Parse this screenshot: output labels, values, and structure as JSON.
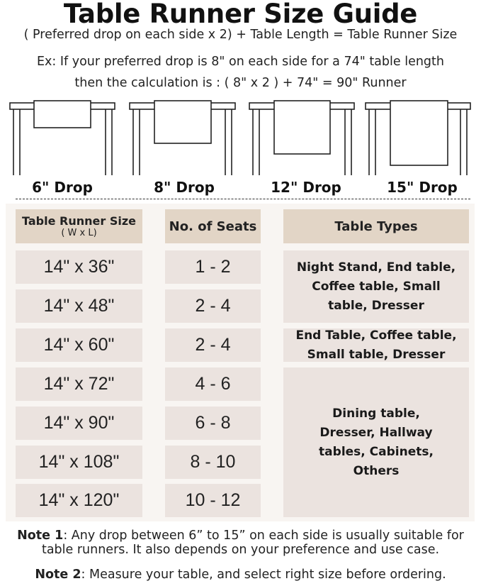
{
  "title": "Table Runner Size Guide",
  "formula": "( Preferred drop on each side x 2) + Table Length = Table Runner Size",
  "example_line1": "Ex: If your preferred drop is 8\" on each side for a 74\" table length",
  "example_line2": "then the calculation is : ( 8\" x 2 ) + 74\" = 90\" Runner",
  "drops": [
    "6\" Drop",
    "8\" Drop",
    "12\" Drop",
    "15\" Drop"
  ],
  "table": {
    "headers": {
      "size": "Table Runner Size",
      "size_sub": "( W x L)",
      "seats": "No. of Seats",
      "types": "Table Types"
    },
    "rows": [
      {
        "size": "14\" x 36\"",
        "seats": "1 - 2"
      },
      {
        "size": "14\" x 48\"",
        "seats": "2 - 4"
      },
      {
        "size": "14\" x 60\"",
        "seats": "2 - 4"
      },
      {
        "size": "14\" x 72\"",
        "seats": "4 - 6"
      },
      {
        "size": "14\" x 90\"",
        "seats": "6 - 8"
      },
      {
        "size": "14\" x 108\"",
        "seats": "8 - 10"
      },
      {
        "size": "14\" x 120\"",
        "seats": "10 - 12"
      }
    ],
    "type_groups": [
      "Night Stand, End table, Coffee table, Small table, Dresser",
      "End Table, Coffee table, Small table, Dresser",
      "Dining table, Dresser, Hallway tables, Cabinets, Others"
    ]
  },
  "notes": [
    {
      "label": "Note 1",
      "text": ": Any drop between 6” to 15” on each side is usually suitable for table runners. It also depends on your preference and use case."
    },
    {
      "label": "Note 2",
      "text": ": Measure your table, and select right size before ordering."
    }
  ],
  "colors": {
    "header_cell": "#e2d5c6",
    "body_cell": "#ebe3df",
    "panel": "#f8f5f2"
  }
}
